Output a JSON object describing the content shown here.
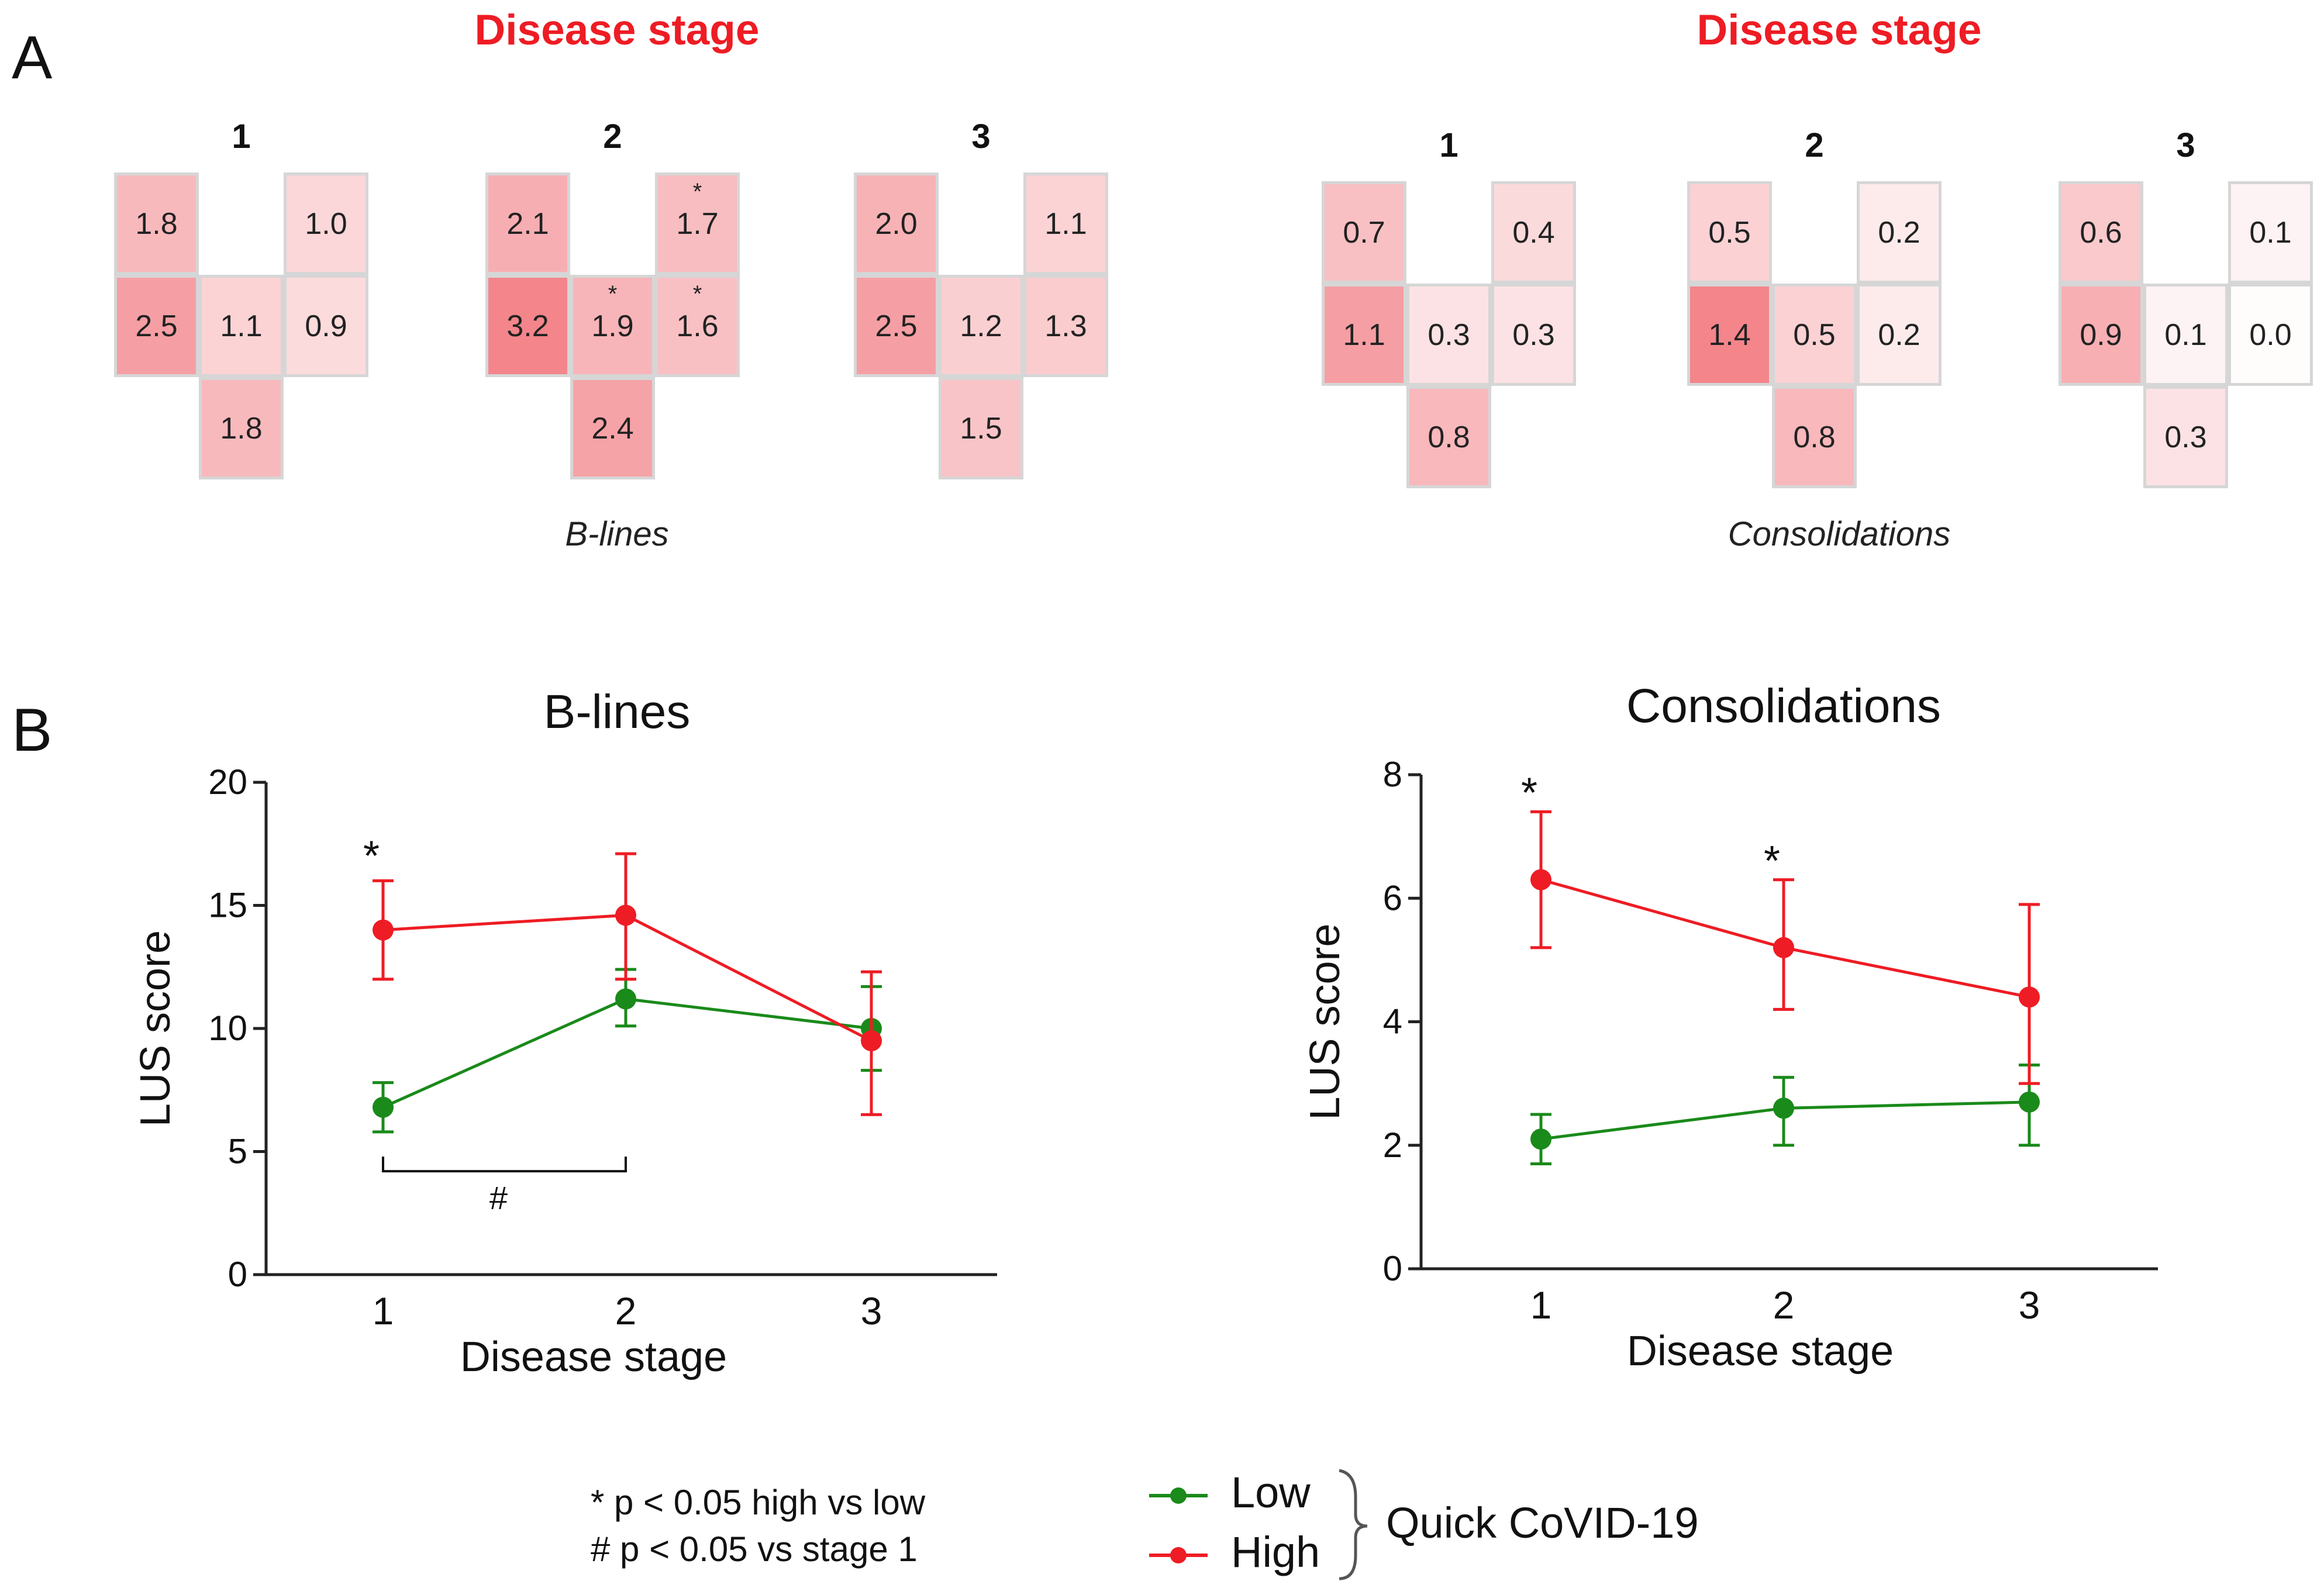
{
  "panel_a_label": "A",
  "panel_b_label": "B",
  "heatmaps": {
    "stage_title": "Disease stage",
    "stage_numbers": [
      "1",
      "2",
      "3"
    ],
    "b_lines": {
      "caption": "B-lines",
      "max": 3.2,
      "stages": [
        {
          "top_left": "1.8",
          "top_right": "1.0",
          "mid_left": "2.5",
          "mid_center": "1.1",
          "mid_right": "0.9",
          "bottom": "1.8",
          "stars": []
        },
        {
          "top_left": "2.1",
          "top_right": "1.7",
          "mid_left": "3.2",
          "mid_center": "1.9",
          "mid_right": "1.6",
          "bottom": "2.4",
          "stars": [
            "top_right",
            "mid_center",
            "mid_right"
          ]
        },
        {
          "top_left": "2.0",
          "top_right": "1.1",
          "mid_left": "2.5",
          "mid_center": "1.2",
          "mid_right": "1.3",
          "bottom": "1.5",
          "stars": []
        }
      ]
    },
    "consolidations": {
      "caption": "Consolidations",
      "max": 1.4,
      "stages": [
        {
          "top_left": "0.7",
          "top_right": "0.4",
          "mid_left": "1.1",
          "mid_center": "0.3",
          "mid_right": "0.3",
          "bottom": "0.8",
          "stars": []
        },
        {
          "top_left": "0.5",
          "top_right": "0.2",
          "mid_left": "1.4",
          "mid_center": "0.5",
          "mid_right": "0.2",
          "bottom": "0.8",
          "stars": []
        },
        {
          "top_left": "0.6",
          "top_right": "0.1",
          "mid_left": "0.9",
          "mid_center": "0.1",
          "mid_right": "0.0",
          "bottom": "0.3",
          "stars": []
        }
      ]
    },
    "star_symbol": "*"
  },
  "chart_data": [
    {
      "type": "line",
      "title": "B-lines",
      "xlabel": "Disease stage",
      "ylabel": "LUS score",
      "categories": [
        "1",
        "2",
        "3"
      ],
      "ylim": [
        0,
        20
      ],
      "yticks": [
        "0",
        "5",
        "10",
        "15",
        "20"
      ],
      "series": [
        {
          "name": "Low",
          "color": "#1a8a1a",
          "values": [
            6.8,
            11.2,
            10.0
          ],
          "err_low": [
            5.8,
            10.1,
            8.3
          ],
          "err_high": [
            7.8,
            12.4,
            11.7
          ]
        },
        {
          "name": "High",
          "color": "#ee1c24",
          "values": [
            14.0,
            14.6,
            9.5
          ],
          "err_low": [
            12.0,
            12.0,
            6.5
          ],
          "err_high": [
            16.0,
            17.1,
            12.3
          ]
        }
      ],
      "annotations": [
        {
          "text": "*",
          "x": "1",
          "y": 17.5
        },
        {
          "text": "#",
          "between": [
            "1",
            "2"
          ],
          "y": 4.2
        }
      ]
    },
    {
      "type": "line",
      "title": "Consolidations",
      "xlabel": "Disease stage",
      "ylabel": "LUS score",
      "categories": [
        "1",
        "2",
        "3"
      ],
      "ylim": [
        0,
        8
      ],
      "yticks": [
        "0",
        "2",
        "4",
        "6",
        "8"
      ],
      "series": [
        {
          "name": "Low",
          "color": "#1a8a1a",
          "values": [
            2.1,
            2.6,
            2.7
          ],
          "err_low": [
            1.7,
            2.0,
            2.0
          ],
          "err_high": [
            2.5,
            3.1,
            3.3
          ]
        },
        {
          "name": "High",
          "color": "#ee1c24",
          "values": [
            6.3,
            5.2,
            4.4
          ],
          "err_low": [
            5.2,
            4.2,
            3.0
          ],
          "err_high": [
            7.4,
            6.3,
            5.9
          ]
        }
      ],
      "annotations": [
        {
          "text": "*",
          "x": "1",
          "y": 7.9
        },
        {
          "text": "*",
          "x": "2",
          "y": 6.8
        }
      ]
    }
  ],
  "legend": {
    "note_1": "* p < 0.05 high vs low",
    "note_2": "# p < 0.05 vs stage 1",
    "low_label": "Low",
    "high_label": "High",
    "group_label": "Quick CoVID-19"
  }
}
